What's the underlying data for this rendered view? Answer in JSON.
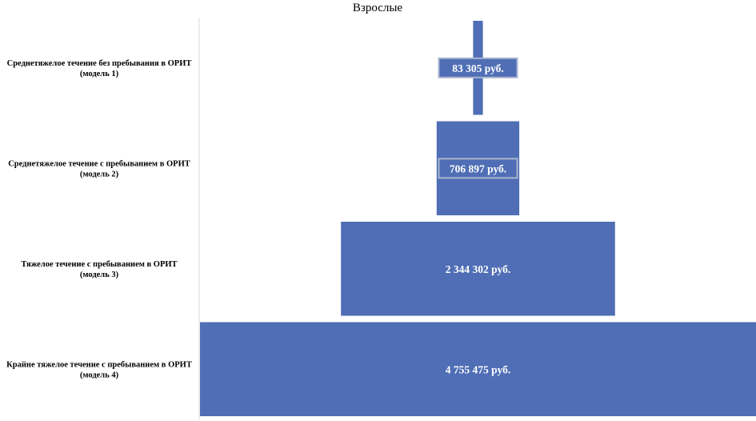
{
  "chart_data": {
    "type": "bar",
    "orientation": "horizontal-centered-funnel",
    "title": "Взрослые",
    "categories": [
      [
        "Среднетяжелое течение без пребывания в ОРИТ",
        "(модель 1)"
      ],
      [
        "Среднетяжелое течение с пребыванием в ОРИТ",
        "(модель 2)"
      ],
      [
        "Тяжелое течение с пребыванием в ОРИТ",
        "(модель 3)"
      ],
      [
        "Крайне тяжелое течение с пребыванием в ОРИТ",
        "(модель 4)"
      ]
    ],
    "values": [
      83305,
      706897,
      2344302,
      4755475
    ],
    "data_labels": [
      "83 305 руб.",
      "706 897 руб.",
      "2 344 302 руб.",
      "4 755 475 руб."
    ],
    "xlabel": "",
    "ylabel": "",
    "xlim": [
      0,
      4755475
    ],
    "grid": false,
    "legend": "none",
    "colors": {
      "bar": "#4f6eb5",
      "label_box_border": "#aab6cf",
      "axis": "#d9d9d9"
    }
  }
}
